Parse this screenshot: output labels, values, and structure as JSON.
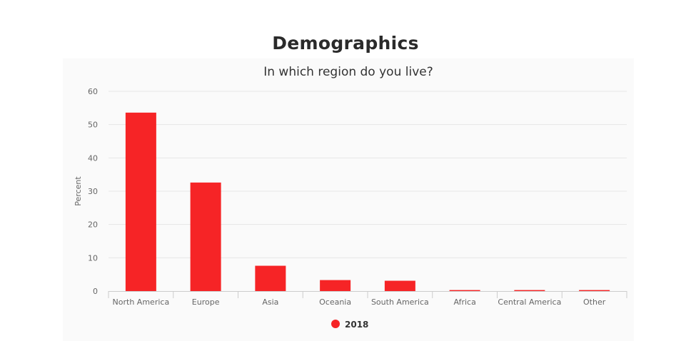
{
  "page": {
    "heading": "Demographics"
  },
  "chart_data": {
    "type": "bar",
    "title": "In which region do you live?",
    "xlabel": "",
    "ylabel": "Percent",
    "ylim": [
      0,
      60
    ],
    "yticks": [
      0,
      10,
      20,
      30,
      40,
      50,
      60
    ],
    "categories": [
      "North America",
      "Europe",
      "Asia",
      "Oceania",
      "South America",
      "Africa",
      "Central America",
      "Other"
    ],
    "series": [
      {
        "name": "2018",
        "color": "#f62426",
        "values": [
          53.6,
          32.6,
          7.6,
          3.3,
          3.1,
          0.3,
          0.3,
          0.3
        ]
      }
    ],
    "grid": true,
    "legend_position": "bottom-center"
  }
}
